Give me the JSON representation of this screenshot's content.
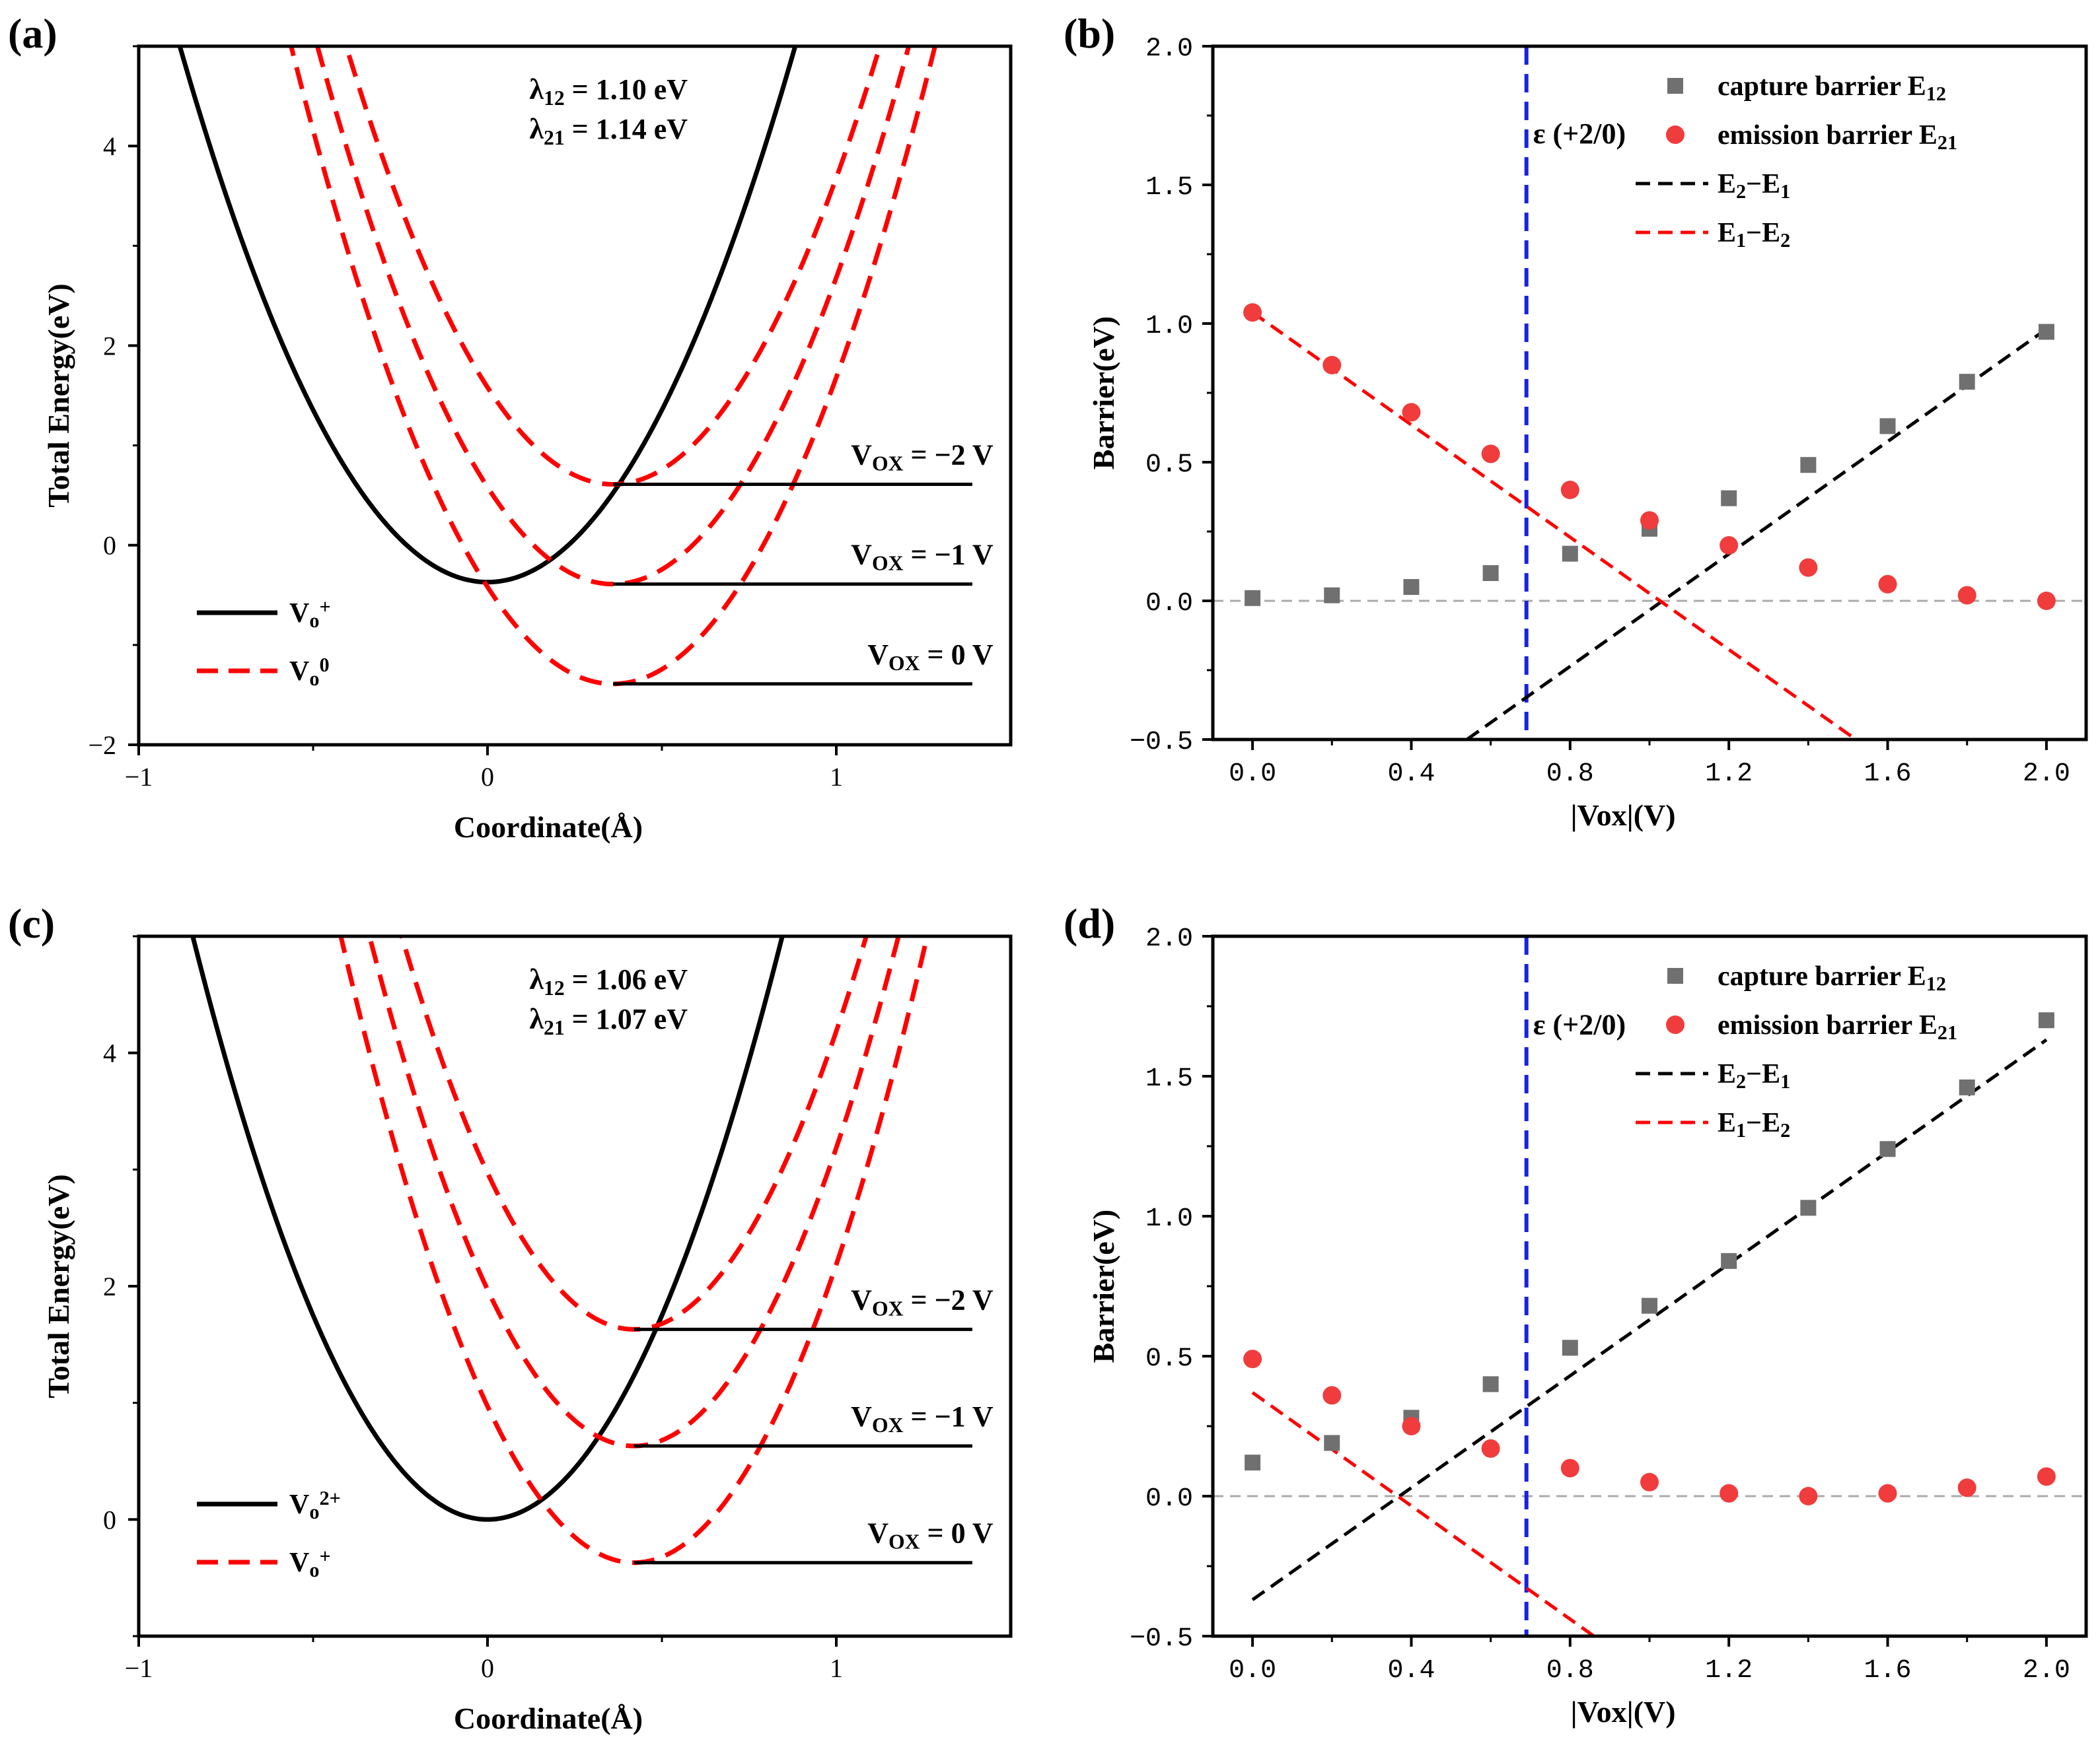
{
  "chart_data": [
    {
      "panel": "(a)",
      "type": "line",
      "xlabel": "Coordinate(Å)",
      "ylabel": "Total Energy(eV)",
      "xlim": [
        -1,
        1.5
      ],
      "ylim": [
        -2,
        5
      ],
      "xticks": [
        -1,
        0,
        1
      ],
      "yticks": [
        -2,
        0,
        2,
        4
      ],
      "grid": false,
      "legend_position": "bottom-left",
      "annotations": [
        "λ₁₂ = 1.10 eV",
        "λ₂₁ = 1.14 eV"
      ],
      "levels": [
        {
          "label": "V_OX = −2 V",
          "label_main": "V",
          "label_sub": "OX",
          "label_rest": " = −2 V",
          "energy": 0.61
        },
        {
          "label": "V_OX = −1 V",
          "label_main": "V",
          "label_sub": "OX",
          "label_rest": " = −1 V",
          "energy": -0.39
        },
        {
          "label": "V_OX = 0 V",
          "label_main": "V",
          "label_sub": "OX",
          "label_rest": " = 0 V",
          "energy": -1.39
        }
      ],
      "series": [
        {
          "name": "Vo+",
          "legend_main": "V",
          "legend_sub": "o",
          "legend_sup": "+",
          "style": "solid",
          "color": "#000000",
          "x0": 0.0,
          "e0": -0.37,
          "curvature": 6.9
        },
        {
          "name": "Vo0 (−2 V)",
          "legend_main": "V",
          "legend_sub": "o",
          "legend_sup": "0",
          "style": "dashed",
          "color": "#ff0000",
          "x0": 0.36,
          "e0": 0.61,
          "curvature": 7.5
        },
        {
          "name": "Vo0 (−1 V)",
          "style": "dashed",
          "color": "#ff0000",
          "x0": 0.36,
          "e0": -0.39,
          "curvature": 7.5
        },
        {
          "name": "Vo0 (0 V)",
          "style": "dashed",
          "color": "#ff0000",
          "x0": 0.36,
          "e0": -1.39,
          "curvature": 7.5
        }
      ]
    },
    {
      "panel": "(b)",
      "type": "scatter",
      "xlabel": "|Vox|(V)",
      "ylabel": "Barrier(eV)",
      "xlim": [
        -0.1,
        2.1
      ],
      "ylim": [
        -0.5,
        2.0
      ],
      "xticks": [
        "0.0",
        "0.4",
        "0.8",
        "1.2",
        "1.6",
        "2.0"
      ],
      "yticks": [
        "−0.5",
        "0.0",
        "0.5",
        "1.0",
        "1.5",
        "2.0"
      ],
      "grid": false,
      "legend_position": "top-right",
      "vline": {
        "x": 0.69,
        "label": "ε (+2/0)"
      },
      "x": [
        0.0,
        0.2,
        0.4,
        0.6,
        0.8,
        1.0,
        1.2,
        1.4,
        1.6,
        1.8,
        2.0
      ],
      "series": [
        {
          "name": "capture barrier E12",
          "legend_main": "capture barrier E",
          "legend_sub": "12",
          "marker": "square",
          "color": "#707070",
          "values": [
            0.01,
            0.02,
            0.05,
            0.1,
            0.17,
            0.26,
            0.37,
            0.49,
            0.63,
            0.79,
            0.97
          ]
        },
        {
          "name": "emission barrier E21",
          "legend_main": "emission barrier E",
          "legend_sub": "21",
          "marker": "circle",
          "color": "#f03c3c",
          "values": [
            1.04,
            0.85,
            0.68,
            0.53,
            0.4,
            0.29,
            0.2,
            0.12,
            0.06,
            0.02,
            0.0
          ]
        }
      ],
      "lines": [
        {
          "name": "E2−E1",
          "legend_parts": [
            "E",
            "2",
            "−E",
            "1"
          ],
          "color": "#000000",
          "x": [
            0.54,
            2.0
          ],
          "y": [
            -0.5,
            0.98
          ]
        },
        {
          "name": "E1−E2",
          "legend_parts": [
            "E",
            "1",
            "−E",
            "2"
          ],
          "color": "#ff0000",
          "x": [
            0.0,
            1.52
          ],
          "y": [
            1.04,
            -0.5
          ]
        }
      ]
    },
    {
      "panel": "(c)",
      "type": "line",
      "xlabel": "Coordinate(Å)",
      "ylabel": "Total Energy(eV)",
      "xlim": [
        -1,
        1.5
      ],
      "ylim": [
        -1,
        5
      ],
      "xticks": [
        -1,
        0,
        1
      ],
      "yticks": [
        0,
        2,
        4
      ],
      "grid": false,
      "legend_position": "bottom-left",
      "annotations": [
        "λ₁₂ = 1.06 eV",
        "λ₂₁ = 1.07 eV"
      ],
      "levels": [
        {
          "label": "V_OX = −2 V",
          "label_main": "V",
          "label_sub": "OX",
          "label_rest": " = −2 V",
          "energy": 1.63
        },
        {
          "label": "V_OX = −1 V",
          "label_main": "V",
          "label_sub": "OX",
          "label_rest": " = −1 V",
          "energy": 0.63
        },
        {
          "label": "V_OX = 0 V",
          "label_main": "V",
          "label_sub": "OX",
          "label_rest": " = 0 V",
          "energy": -0.37
        }
      ],
      "series": [
        {
          "name": "Vo2+",
          "legend_main": "V",
          "legend_sub": "o",
          "legend_sup": "2+",
          "style": "solid",
          "color": "#000000",
          "x0": 0.0,
          "e0": 0.0,
          "curvature": 7.0
        },
        {
          "name": "Vo+ (−2 V)",
          "legend_main": "V",
          "legend_sub": "o",
          "legend_sup": "+",
          "style": "dashed",
          "color": "#ff0000",
          "x0": 0.42,
          "e0": 1.63,
          "curvature": 7.6
        },
        {
          "name": "Vo+ (−1 V)",
          "style": "dashed",
          "color": "#ff0000",
          "x0": 0.42,
          "e0": 0.63,
          "curvature": 7.6
        },
        {
          "name": "Vo+ (0 V)",
          "style": "dashed",
          "color": "#ff0000",
          "x0": 0.42,
          "e0": -0.37,
          "curvature": 7.6
        }
      ]
    },
    {
      "panel": "(d)",
      "type": "scatter",
      "xlabel": "|Vox|(V)",
      "ylabel": "Barrier(eV)",
      "xlim": [
        -0.1,
        2.1
      ],
      "ylim": [
        -0.5,
        2.0
      ],
      "xticks": [
        "0.0",
        "0.4",
        "0.8",
        "1.2",
        "1.6",
        "2.0"
      ],
      "yticks": [
        "−0.5",
        "0.0",
        "0.5",
        "1.0",
        "1.5",
        "2.0"
      ],
      "grid": false,
      "legend_position": "top-right",
      "vline": {
        "x": 0.69,
        "label": "ε (+2/0)"
      },
      "x": [
        0.0,
        0.2,
        0.4,
        0.6,
        0.8,
        1.0,
        1.2,
        1.4,
        1.6,
        1.8,
        2.0
      ],
      "series": [
        {
          "name": "capture barrier E12",
          "legend_main": "capture barrier E",
          "legend_sub": "12",
          "marker": "square",
          "color": "#707070",
          "values": [
            0.12,
            0.19,
            0.28,
            0.4,
            0.53,
            0.68,
            0.84,
            1.03,
            1.24,
            1.46,
            1.7
          ]
        },
        {
          "name": "emission barrier E21",
          "legend_main": "emission barrier E",
          "legend_sub": "21",
          "marker": "circle",
          "color": "#f03c3c",
          "values": [
            0.49,
            0.36,
            0.25,
            0.17,
            0.1,
            0.05,
            0.01,
            0.0,
            0.01,
            0.03,
            0.07
          ]
        }
      ],
      "lines": [
        {
          "name": "E2−E1",
          "legend_parts": [
            "E",
            "2",
            "−E",
            "1"
          ],
          "color": "#000000",
          "x": [
            0.0,
            2.0
          ],
          "y": [
            -0.37,
            1.63
          ]
        },
        {
          "name": "E1−E2",
          "legend_parts": [
            "E",
            "1",
            "−E",
            "2"
          ],
          "color": "#ff0000",
          "x": [
            0.0,
            0.86
          ],
          "y": [
            0.37,
            -0.5
          ]
        }
      ]
    }
  ]
}
